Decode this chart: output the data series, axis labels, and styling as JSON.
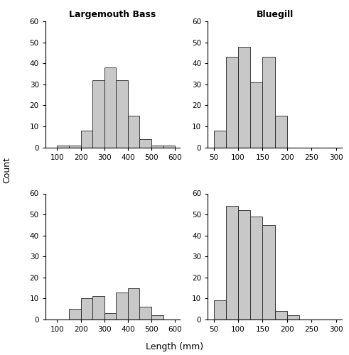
{
  "title_lmb": "Largemouth Bass",
  "title_bg": "Bluegill",
  "ylabel": "Count",
  "xlabel": "Length (mm)",
  "bar_color": "#c8c8c8",
  "bar_edgecolor": "#222222",
  "ylim": [
    0,
    60
  ],
  "yticks": [
    0,
    10,
    20,
    30,
    40,
    50,
    60
  ],
  "lmb_pre_bins": [
    50,
    100,
    150,
    200,
    250,
    300,
    350,
    400,
    450,
    500,
    550,
    600
  ],
  "lmb_pre_counts": [
    0,
    1,
    1,
    8,
    32,
    38,
    32,
    15,
    4,
    1,
    1
  ],
  "lmb_xlim": [
    50,
    620
  ],
  "lmb_xticks": [
    100,
    200,
    300,
    400,
    500,
    600
  ],
  "bg_pre_bins": [
    50,
    75,
    100,
    125,
    150,
    175,
    200,
    225,
    250,
    275,
    300
  ],
  "bg_pre_counts": [
    8,
    43,
    48,
    31,
    43,
    15,
    0,
    0,
    0,
    0
  ],
  "bg_xlim": [
    37.5,
    312.5
  ],
  "bg_xticks": [
    50,
    100,
    150,
    200,
    250,
    300
  ],
  "lmb_post_counts": [
    0,
    0,
    5,
    10,
    11,
    3,
    13,
    15,
    6,
    2,
    0
  ],
  "bg_post_counts": [
    9,
    54,
    52,
    49,
    45,
    4,
    2,
    0,
    0,
    0
  ]
}
